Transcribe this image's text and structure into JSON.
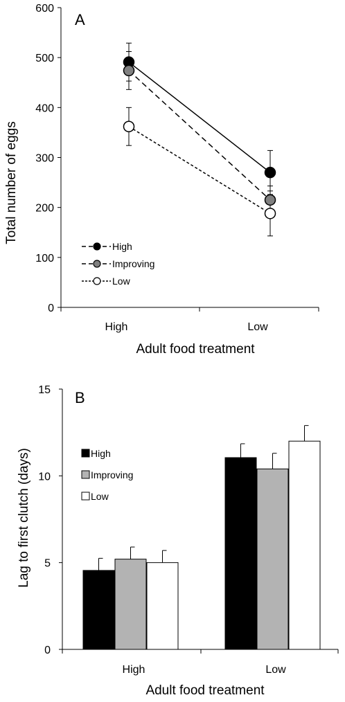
{
  "chart_data": [
    {
      "type": "line",
      "panel_label": "A",
      "xlabel": "Adult food treatment",
      "ylabel": "Total number of eggs",
      "categories": [
        "High",
        "Low"
      ],
      "ylim": [
        0,
        600
      ],
      "yticks": [
        0,
        100,
        200,
        300,
        400,
        500,
        600
      ],
      "legend_position": "lower-left",
      "series": [
        {
          "name": "High",
          "values": [
            491,
            270
          ],
          "errors": [
            38,
            44
          ],
          "marker_fill": "#000000",
          "line": "solid"
        },
        {
          "name": "Improving",
          "values": [
            474,
            215
          ],
          "errors": [
            38,
            28
          ],
          "marker_fill": "#808080",
          "line": "dashed"
        },
        {
          "name": "Low",
          "values": [
            362,
            188
          ],
          "errors": [
            38,
            45
          ],
          "marker_fill": "#ffffff",
          "line": "dotted"
        }
      ]
    },
    {
      "type": "bar",
      "panel_label": "B",
      "xlabel": "Adult food treatment",
      "ylabel": "Lag to first clutch (days)",
      "categories": [
        "High",
        "Low"
      ],
      "ylim": [
        0,
        15
      ],
      "yticks": [
        0,
        5,
        10,
        15
      ],
      "legend_position": "upper-left",
      "series": [
        {
          "name": "High",
          "values": [
            4.55,
            11.05
          ],
          "errors": [
            0.7,
            0.8
          ],
          "color": "#000000"
        },
        {
          "name": "Improving",
          "values": [
            5.2,
            10.4
          ],
          "errors": [
            0.7,
            0.9
          ],
          "color": "#b3b3b3"
        },
        {
          "name": "Low",
          "values": [
            5.0,
            12.0
          ],
          "errors": [
            0.7,
            0.9
          ],
          "color": "#ffffff"
        }
      ]
    }
  ]
}
